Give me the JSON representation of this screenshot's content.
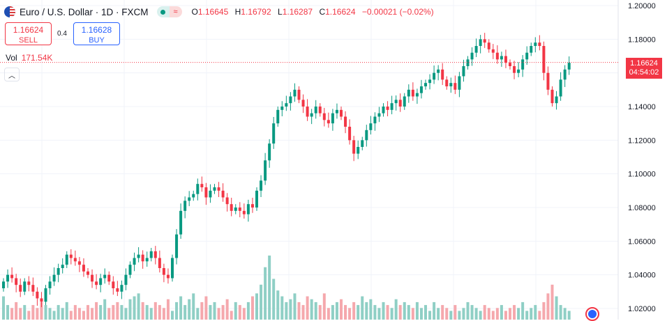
{
  "header": {
    "symbol": "Euro / U.S. Dollar · 1D · FXCM",
    "open_label": "O",
    "open": "1.16645",
    "high_label": "H",
    "high": "1.16792",
    "low_label": "L",
    "low": "1.16287",
    "close_label": "C",
    "close": "1.16624",
    "change": "−0.00021 (−0.02%)"
  },
  "trade": {
    "sell_price": "1.16624",
    "sell_label": "SELL",
    "spread": "0.4",
    "buy_price": "1.16628",
    "buy_label": "BUY"
  },
  "volume": {
    "label": "Vol",
    "value": "171.54K"
  },
  "price_label": {
    "price": "1.16624",
    "countdown": "04:54:02"
  },
  "colors": {
    "up": "#089981",
    "down": "#f23645",
    "vol_up": "#8fcfc5",
    "vol_down": "#f5a8ad"
  },
  "icons": {
    "collapse": "chevron-up-icon",
    "flag": "eur-usd-flag-icon",
    "badge": "event-badge-icon"
  },
  "chart_data": {
    "type": "candlestick",
    "ylim": [
      1.01,
      1.2
    ],
    "y_ticks": [
      "1.20000",
      "1.18000",
      "1.16000",
      "1.14000",
      "1.12000",
      "1.10000",
      "1.08000",
      "1.06000",
      "1.04000",
      "1.02000"
    ],
    "y_tick_values": [
      1.2,
      1.18,
      1.16,
      1.14,
      1.12,
      1.1,
      1.08,
      1.06,
      1.04,
      1.02
    ],
    "last_price": 1.16624,
    "series": [
      {
        "name": "EURUSD",
        "close": [
          1.036,
          1.04,
          1.038,
          1.034,
          1.03,
          1.036,
          1.034,
          1.03,
          1.026,
          1.024,
          1.032,
          1.036,
          1.04,
          1.044,
          1.046,
          1.052,
          1.05,
          1.048,
          1.046,
          1.042,
          1.04,
          1.036,
          1.034,
          1.038,
          1.04,
          1.036,
          1.032,
          1.03,
          1.034,
          1.04,
          1.046,
          1.05,
          1.052,
          1.048,
          1.05,
          1.054,
          1.05,
          1.044,
          1.04,
          1.038,
          1.05,
          1.064,
          1.078,
          1.084,
          1.086,
          1.088,
          1.094,
          1.092,
          1.086,
          1.09,
          1.092,
          1.09,
          1.086,
          1.082,
          1.078,
          1.08,
          1.078,
          1.076,
          1.082,
          1.08,
          1.09,
          1.096,
          1.108,
          1.118,
          1.13,
          1.138,
          1.14,
          1.142,
          1.146,
          1.15,
          1.144,
          1.14,
          1.134,
          1.136,
          1.14,
          1.136,
          1.132,
          1.13,
          1.136,
          1.138,
          1.134,
          1.128,
          1.12,
          1.112,
          1.116,
          1.12,
          1.126,
          1.13,
          1.134,
          1.136,
          1.14,
          1.138,
          1.142,
          1.144,
          1.14,
          1.146,
          1.15,
          1.146,
          1.148,
          1.152,
          1.154,
          1.156,
          1.16,
          1.162,
          1.156,
          1.152,
          1.154,
          1.15,
          1.158,
          1.164,
          1.168,
          1.172,
          1.176,
          1.18,
          1.178,
          1.174,
          1.172,
          1.168,
          1.17,
          1.166,
          1.164,
          1.16,
          1.162,
          1.168,
          1.172,
          1.176,
          1.178,
          1.176,
          1.16,
          1.15,
          1.142,
          1.146,
          1.156,
          1.162,
          1.166
        ]
      },
      {
        "name": "Volume",
        "values": [
          8,
          5,
          4,
          6,
          4,
          5,
          3,
          5,
          4,
          6,
          5,
          4,
          3,
          5,
          4,
          6,
          3,
          5,
          4,
          3,
          5,
          4,
          6,
          5,
          7,
          4,
          5,
          6,
          5,
          4,
          7,
          8,
          9,
          6,
          5,
          4,
          6,
          5,
          4,
          7,
          3,
          6,
          8,
          5,
          7,
          9,
          4,
          6,
          8,
          5,
          6,
          4,
          5,
          7,
          3,
          6,
          5,
          4,
          6,
          8,
          9,
          12,
          18,
          22,
          14,
          10,
          8,
          6,
          7,
          9,
          6,
          5,
          8,
          7,
          6,
          5,
          9,
          4,
          5,
          6,
          7,
          5,
          4,
          6,
          5,
          8,
          6,
          7,
          5,
          4,
          6,
          5,
          4,
          7,
          5,
          6,
          5,
          4,
          6,
          4,
          5,
          3,
          6,
          4,
          5,
          4,
          3,
          5,
          3,
          4,
          6,
          5,
          4,
          3,
          5,
          4,
          3,
          4,
          5,
          3,
          4,
          5,
          4,
          6,
          3,
          4,
          5,
          3,
          6,
          9,
          12,
          8,
          5,
          4,
          3
        ]
      }
    ]
  }
}
